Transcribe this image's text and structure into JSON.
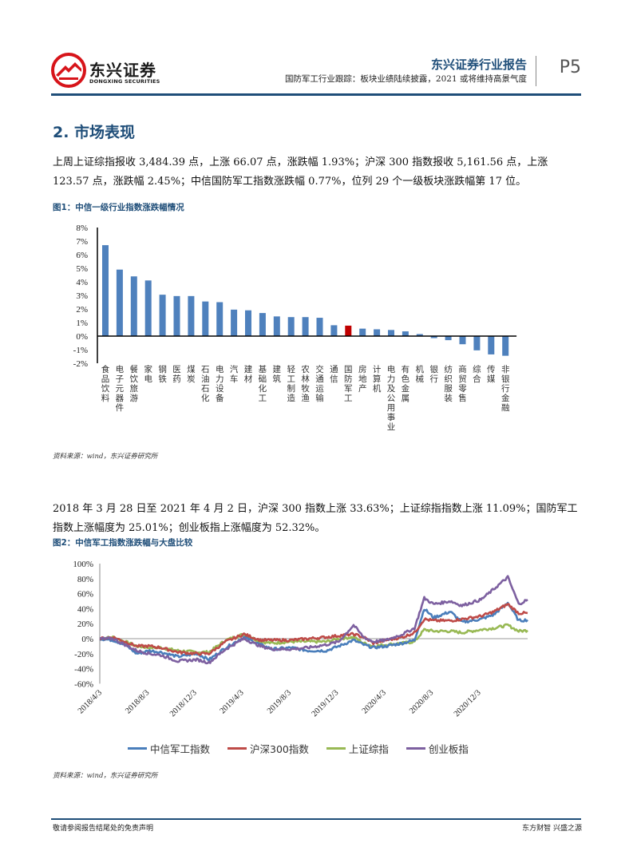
{
  "header": {
    "logo_cn": "东兴证券",
    "logo_en": "DONGXING SECURITIES",
    "report_type": "东兴证券行业报告",
    "subtitle": "国防军工行业跟踪：板块业绩陆续披露，2021 或将维持高景气度",
    "page": "P5",
    "brand_color": "#1f4e79",
    "logo_color": "#d7141a"
  },
  "section": {
    "title": "2. 市场表现"
  },
  "paragraphs": {
    "p1": "上周上证综指报收 3,484.39 点，上涨 66.07 点，涨跌幅 1.93%；沪深 300 指数报收 5,161.56 点，上涨 123.57 点，涨跌幅 2.45%；中信国防军工指数涨跌幅 0.77%，位列 29 个一级板块涨跌幅第 17 位。",
    "p2": "2018 年 3 月 28 日至 2021 年 4 月 2 日，沪深 300 指数上涨 33.63%；上证综指指数上涨 11.09%；国防军工指数上涨幅度为 25.01%；创业板指上涨幅度为 52.32%。"
  },
  "figures": {
    "fig1_title": "图1：中信一级行业指数涨跌幅情况",
    "fig1_source": "资料来源：wind，东兴证券研究所",
    "fig2_title": "图2：中信军工指数涨跌幅与大盘比较",
    "fig2_source": "资料来源：wind，东兴证券研究所"
  },
  "footer": {
    "left": "敬请参阅报告结尾处的免责声明",
    "right": "东方财智 兴盛之源"
  },
  "chart_data": [
    {
      "type": "bar",
      "title": "图1：中信一级行业指数涨跌幅情况",
      "xlabel": "",
      "ylabel": "",
      "ylim": [
        -2,
        8
      ],
      "yticks": [
        "8%",
        "7%",
        "6%",
        "5%",
        "4%",
        "3%",
        "2%",
        "1%",
        "0%",
        "-1%",
        "-2%"
      ],
      "grid": false,
      "legend": "none",
      "unit": "%",
      "bar_color": "#4f81bd",
      "highlight_color": "#c00000",
      "highlight_category": "国防军工",
      "categories": [
        "食品饮料",
        "电子元器件",
        "餐饮旅游",
        "家电",
        "钢铁",
        "医药",
        "煤炭",
        "石油石化",
        "电力设备",
        "汽车",
        "建材",
        "基础化工",
        "建筑",
        "轻工制造",
        "农林牧渔",
        "交通运输",
        "通信",
        "国防军工",
        "房地产",
        "计算机",
        "电力及公用事业",
        "有色金属",
        "机械",
        "银行",
        "纺织服装",
        "商贸零售",
        "综合",
        "传媒",
        "非银行金融"
      ],
      "values": [
        6.7,
        4.9,
        4.4,
        4.1,
        3.05,
        2.95,
        2.95,
        2.55,
        2.5,
        1.95,
        1.9,
        1.7,
        1.45,
        1.4,
        1.4,
        1.35,
        0.8,
        0.77,
        0.55,
        0.5,
        0.45,
        0.35,
        0.15,
        -0.15,
        -0.3,
        -0.6,
        -1.05,
        -1.35,
        -1.45
      ]
    },
    {
      "type": "line",
      "title": "图2：中信军工指数涨跌幅与大盘比较",
      "xlabel": "",
      "ylabel": "",
      "ylim": [
        -60,
        100
      ],
      "yticks": [
        "100%",
        "80%",
        "60%",
        "40%",
        "20%",
        "0%",
        "-20%",
        "-40%",
        "-60%"
      ],
      "grid": false,
      "legend": "bottom",
      "x_range": [
        "2018/3/28",
        "2021/4/2"
      ],
      "xticks": [
        "2018/4/3",
        "2018/8/3",
        "2018/12/3",
        "2019/4/3",
        "2019/8/3",
        "2019/12/3",
        "2020/4/3",
        "2020/8/3",
        "2020/12/3"
      ],
      "x": [
        "2018/3/28",
        "2018/5/1",
        "2018/6/1",
        "2018/7/1",
        "2018/8/3",
        "2018/9/1",
        "2018/10/15",
        "2018/12/3",
        "2019/1/3",
        "2019/2/15",
        "2019/4/3",
        "2019/5/15",
        "2019/6/15",
        "2019/8/3",
        "2019/9/15",
        "2019/11/1",
        "2019/12/3",
        "2020/1/10",
        "2020/2/5",
        "2020/3/1",
        "2020/4/3",
        "2020/5/15",
        "2020/6/15",
        "2020/7/10",
        "2020/8/3",
        "2020/9/15",
        "2020/10/15",
        "2020/12/3",
        "2021/1/5",
        "2021/2/10",
        "2021/3/10",
        "2021/4/2"
      ],
      "series": [
        {
          "name": "中信军工指数",
          "color": "#4a7ebb",
          "values": [
            0,
            -2,
            -8,
            -20,
            -16,
            -18,
            -24,
            -20,
            -28,
            -12,
            2,
            -8,
            -14,
            -12,
            -16,
            -16,
            -10,
            -2,
            -8,
            -12,
            -10,
            -6,
            -2,
            40,
            28,
            36,
            22,
            26,
            32,
            48,
            24,
            25
          ]
        },
        {
          "name": "沪深300指数",
          "color": "#be4b48",
          "values": [
            0,
            2,
            -4,
            -10,
            -10,
            -12,
            -18,
            -20,
            -20,
            -4,
            6,
            -2,
            -2,
            -2,
            0,
            2,
            4,
            6,
            2,
            -6,
            -2,
            2,
            8,
            26,
            24,
            24,
            26,
            30,
            36,
            46,
            34,
            34
          ]
        },
        {
          "name": "上证综指",
          "color": "#98b954",
          "values": [
            0,
            2,
            -4,
            -10,
            -12,
            -12,
            -16,
            -18,
            -18,
            -2,
            6,
            -4,
            -6,
            -4,
            -4,
            -4,
            0,
            2,
            -6,
            -10,
            -8,
            -6,
            -4,
            12,
            10,
            10,
            8,
            12,
            14,
            18,
            10,
            11
          ]
        },
        {
          "name": "创业板指",
          "color": "#7d60a0",
          "values": [
            0,
            0,
            -8,
            -16,
            -20,
            -22,
            -30,
            -28,
            -32,
            -14,
            0,
            -10,
            -14,
            -14,
            -12,
            -8,
            -4,
            18,
            2,
            -4,
            -2,
            6,
            14,
            54,
            46,
            50,
            44,
            52,
            66,
            82,
            46,
            52
          ]
        }
      ]
    }
  ]
}
